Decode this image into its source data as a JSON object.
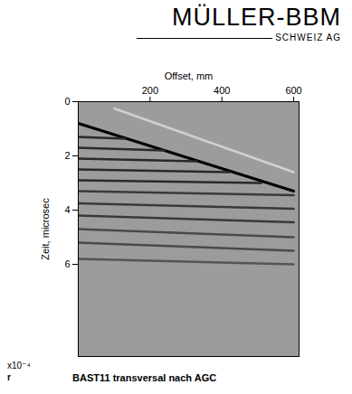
{
  "logo": {
    "name": "MÜLLER-BBM",
    "sub": "SCHWEIZ AG"
  },
  "chart_data": {
    "type": "line",
    "title": "BAST11 transversal nach AGC",
    "x_label": "Offset, mm",
    "y_label": "Zeit, microsec",
    "annotations": [
      "x10⁻⁴",
      "r"
    ],
    "xlim": [
      0,
      615
    ],
    "xticks": [
      200,
      400,
      600
    ],
    "ylim": [
      0,
      9.4
    ],
    "yticks": [
      0,
      2,
      4,
      6
    ],
    "series": [
      {
        "color": "#d0d0d0",
        "x": [
          100,
          600
        ],
        "values": [
          0.25,
          2.6
        ]
      },
      {
        "color": "#000000",
        "x": [
          0,
          600
        ],
        "values": [
          0.8,
          3.3
        ]
      },
      {
        "color": "#2a2a2a",
        "x": [
          0,
          130
        ],
        "values": [
          1.3,
          1.37
        ]
      },
      {
        "color": "#2a2a2a",
        "x": [
          0,
          240
        ],
        "values": [
          1.7,
          1.8
        ]
      },
      {
        "color": "#2a2a2a",
        "x": [
          0,
          330
        ],
        "values": [
          2.1,
          2.2
        ]
      },
      {
        "color": "#2a2a2a",
        "x": [
          0,
          420
        ],
        "values": [
          2.5,
          2.6
        ]
      },
      {
        "color": "#2a2a2a",
        "x": [
          0,
          510
        ],
        "values": [
          2.9,
          3.0
        ]
      },
      {
        "color": "#3a3a3a",
        "x": [
          0,
          600
        ],
        "values": [
          3.3,
          3.45
        ]
      },
      {
        "color": "#3a3a3a",
        "x": [
          0,
          600
        ],
        "values": [
          3.75,
          3.95
        ]
      },
      {
        "color": "#3a3a3a",
        "x": [
          0,
          600
        ],
        "values": [
          4.2,
          4.45
        ]
      },
      {
        "color": "#4a4a4a",
        "x": [
          0,
          600
        ],
        "values": [
          4.7,
          5.0
        ]
      },
      {
        "color": "#4a4a4a",
        "x": [
          0,
          600
        ],
        "values": [
          5.2,
          5.5
        ]
      },
      {
        "color": "#555555",
        "x": [
          0,
          600
        ],
        "values": [
          5.8,
          6.0
        ]
      }
    ]
  }
}
